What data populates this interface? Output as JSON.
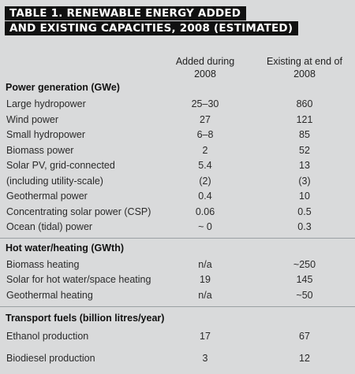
{
  "title": {
    "line1": "TABLE 1. RENEWABLE ENERGY ADDED",
    "line2": "AND EXISTING CAPACITIES, 2008 (ESTIMATED)"
  },
  "columns": {
    "added": [
      "Added during",
      "2008"
    ],
    "existing": [
      "Existing at end of",
      "2008"
    ]
  },
  "sections": [
    {
      "heading": "Power generation (GWe)",
      "rows": [
        {
          "label": "Large hydropower",
          "added": "25–30",
          "existing": "860"
        },
        {
          "label": "Wind power",
          "added": "27",
          "existing": "121"
        },
        {
          "label": "Small hydropower",
          "added": "6–8",
          "existing": "85"
        },
        {
          "label": "Biomass power",
          "added": "2",
          "existing": "52"
        },
        {
          "label": "Solar PV, grid-connected",
          "added": "5.4",
          "existing": "13"
        },
        {
          "label": "(including utility-scale)",
          "added": "(2)",
          "existing": "(3)"
        },
        {
          "label": "Geothermal power",
          "added": "0.4",
          "existing": "10"
        },
        {
          "label": "Concentrating solar power (CSP)",
          "added": "0.06",
          "existing": "0.5"
        },
        {
          "label": "Ocean (tidal) power",
          "added": "~ 0",
          "existing": "0.3"
        }
      ]
    },
    {
      "heading": "Hot water/heating (GWth)",
      "rows": [
        {
          "label": "Biomass heating",
          "added": "n/a",
          "existing": "~250"
        },
        {
          "label": "Solar for hot water/space heating",
          "added": "19",
          "existing": "145"
        },
        {
          "label": "Geothermal heating",
          "added": "n/a",
          "existing": "~50"
        }
      ]
    },
    {
      "heading": "Transport fuels (billion litres/year)",
      "rows": [
        {
          "label": "Ethanol production",
          "added": "17",
          "existing": "67"
        },
        {
          "label": "Biodiesel production",
          "added": "3",
          "existing": "12"
        }
      ]
    }
  ]
}
